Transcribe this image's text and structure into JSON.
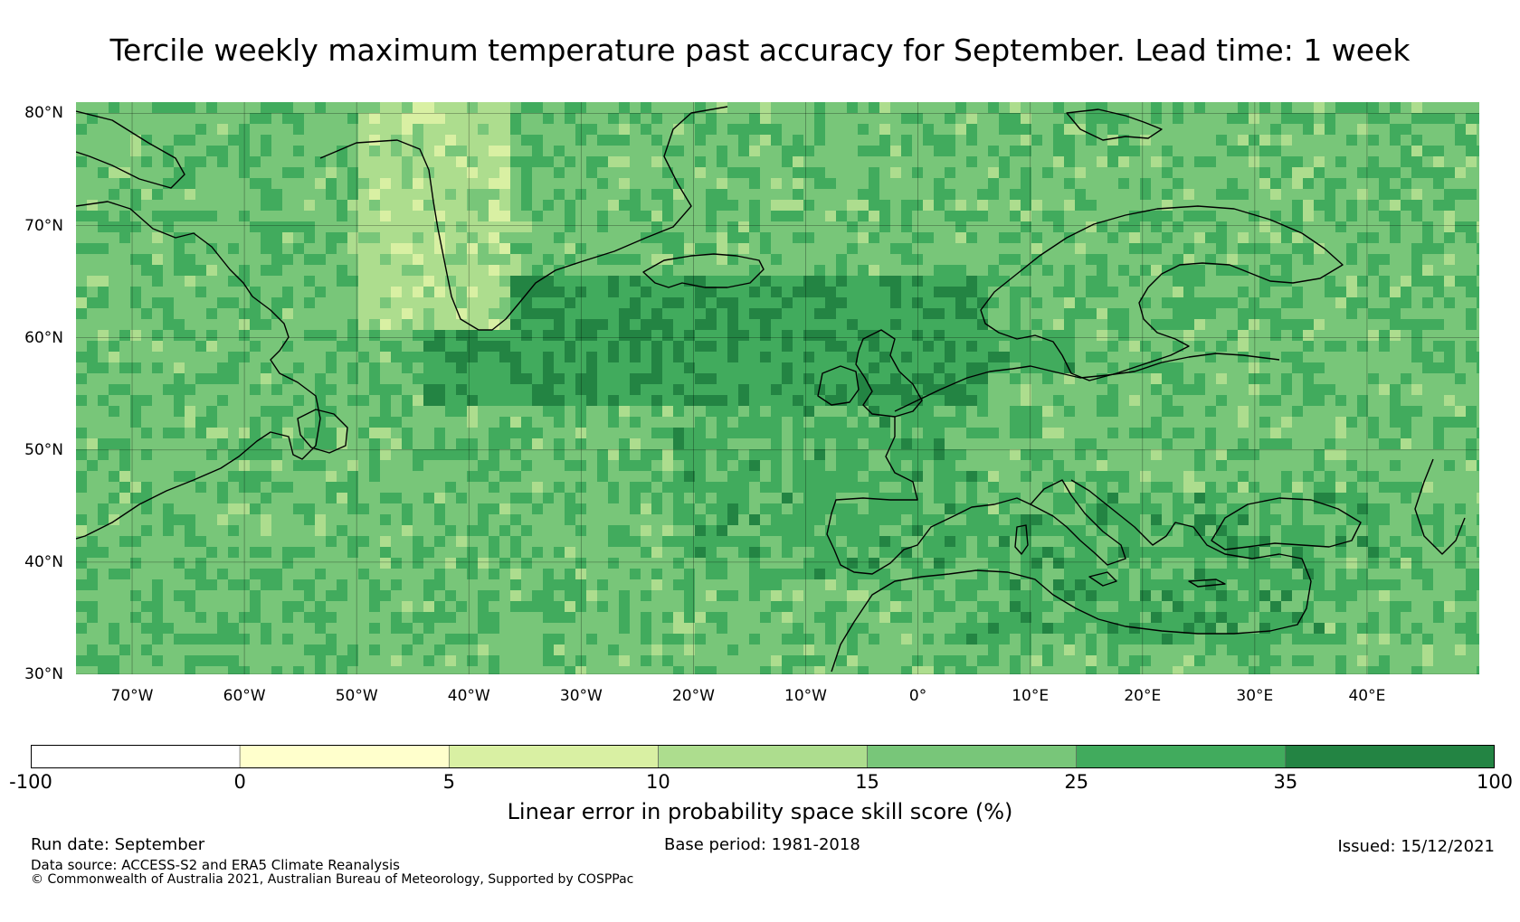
{
  "title": "Tercile weekly maximum temperature past accuracy for September. Lead time: 1 week",
  "map": {
    "extent": {
      "lon_min": -75,
      "lon_max": 50,
      "lat_min": 30,
      "lat_max": 81
    },
    "lat_labels": [
      {
        "value": 80,
        "label": "80°N"
      },
      {
        "value": 70,
        "label": "70°N"
      },
      {
        "value": 60,
        "label": "60°N"
      },
      {
        "value": 50,
        "label": "50°N"
      },
      {
        "value": 40,
        "label": "40°N"
      },
      {
        "value": 30,
        "label": "30°N"
      }
    ],
    "lon_labels": [
      {
        "value": -70,
        "label": "70°W"
      },
      {
        "value": -60,
        "label": "60°W"
      },
      {
        "value": -50,
        "label": "50°W"
      },
      {
        "value": -40,
        "label": "40°W"
      },
      {
        "value": -30,
        "label": "30°W"
      },
      {
        "value": -20,
        "label": "20°W"
      },
      {
        "value": -10,
        "label": "10°W"
      },
      {
        "value": 0,
        "label": "0°"
      },
      {
        "value": 10,
        "label": "10°E"
      },
      {
        "value": 20,
        "label": "20°E"
      },
      {
        "value": 30,
        "label": "30°E"
      },
      {
        "value": 40,
        "label": "40°E"
      }
    ]
  },
  "colorbar": {
    "bins": [
      {
        "from": -100,
        "to": 0,
        "color": "#ffffff"
      },
      {
        "from": 0,
        "to": 5,
        "color": "#ffffcc"
      },
      {
        "from": 5,
        "to": 10,
        "color": "#d9f0a3"
      },
      {
        "from": 10,
        "to": 15,
        "color": "#addd8e"
      },
      {
        "from": 15,
        "to": 25,
        "color": "#78c679"
      },
      {
        "from": 25,
        "to": 35,
        "color": "#41ab5d"
      },
      {
        "from": 35,
        "to": 100,
        "color": "#238443"
      }
    ],
    "ticks": [
      "-100",
      "0",
      "5",
      "10",
      "15",
      "25",
      "35",
      "100"
    ],
    "label": "Linear error in probability space skill score (%)"
  },
  "footer": {
    "run_date": "Run date: September",
    "base_period": "Base period: 1981-2018",
    "issued": "Issued: 15/12/2021",
    "source": "Data source: ACCESS-S2 and ERA5 Climate Reanalysis",
    "copyright": "© Commonwealth of Australia 2021, Australian Bureau of Meteorology, Supported by COSPPac"
  }
}
